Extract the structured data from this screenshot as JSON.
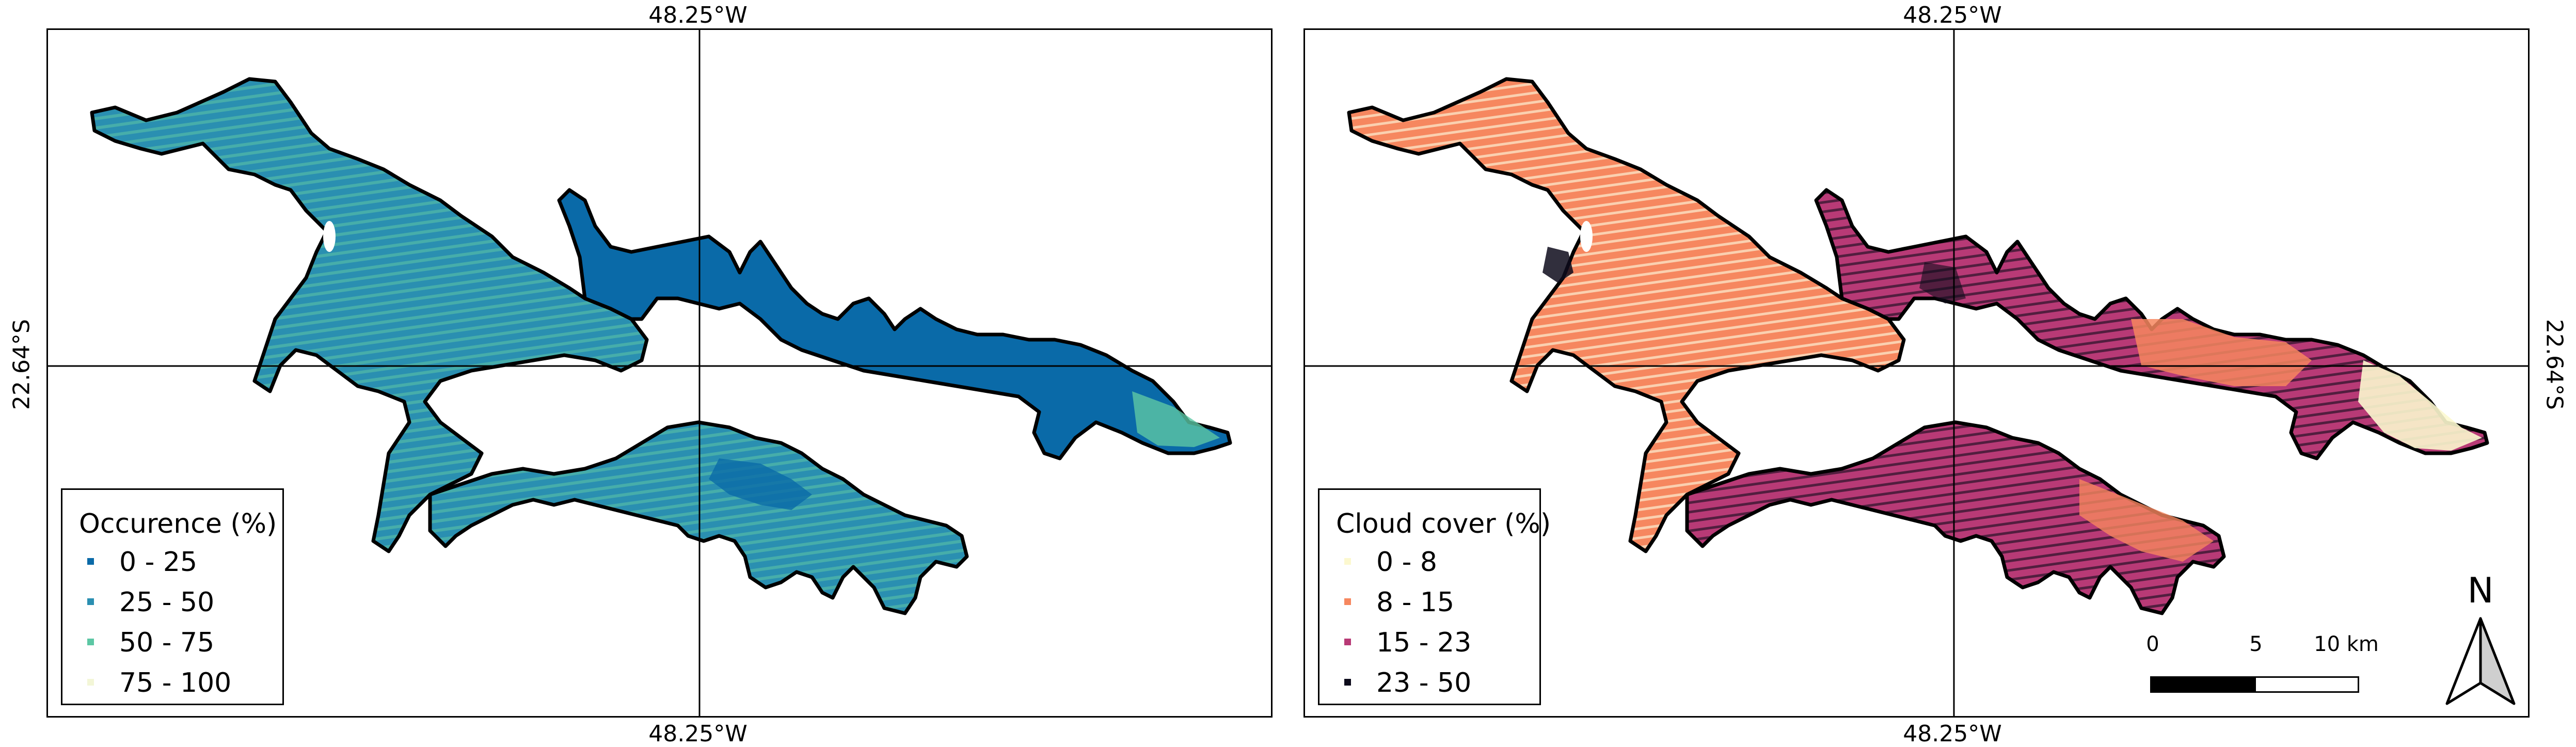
{
  "coordinates": {
    "top_label": "48.25°W",
    "bottom_label": "48.25°W",
    "side_label": "22.64°S"
  },
  "maps": [
    {
      "legend_title": "Occurence (%)",
      "classes": [
        {
          "label": "0 - 25",
          "color": "#0a6aa8"
        },
        {
          "label": "25 - 50",
          "color": "#2a8fb1"
        },
        {
          "label": "50 - 75",
          "color": "#5cc7a4"
        },
        {
          "label": "75 - 100",
          "color": "#f3f6d7"
        }
      ]
    },
    {
      "legend_title": "Cloud cover (%)",
      "classes": [
        {
          "label": "0 - 8",
          "color": "#fcf8cf"
        },
        {
          "label": "8 - 15",
          "color": "#f6875f"
        },
        {
          "label": "15 - 23",
          "color": "#b83a76"
        },
        {
          "label": "23 - 50",
          "color": "#0d0b1b"
        }
      ]
    }
  ],
  "scale_bar": {
    "ticks": [
      "0",
      "5",
      "10 km"
    ]
  },
  "north_arrow": {
    "label": "N"
  }
}
